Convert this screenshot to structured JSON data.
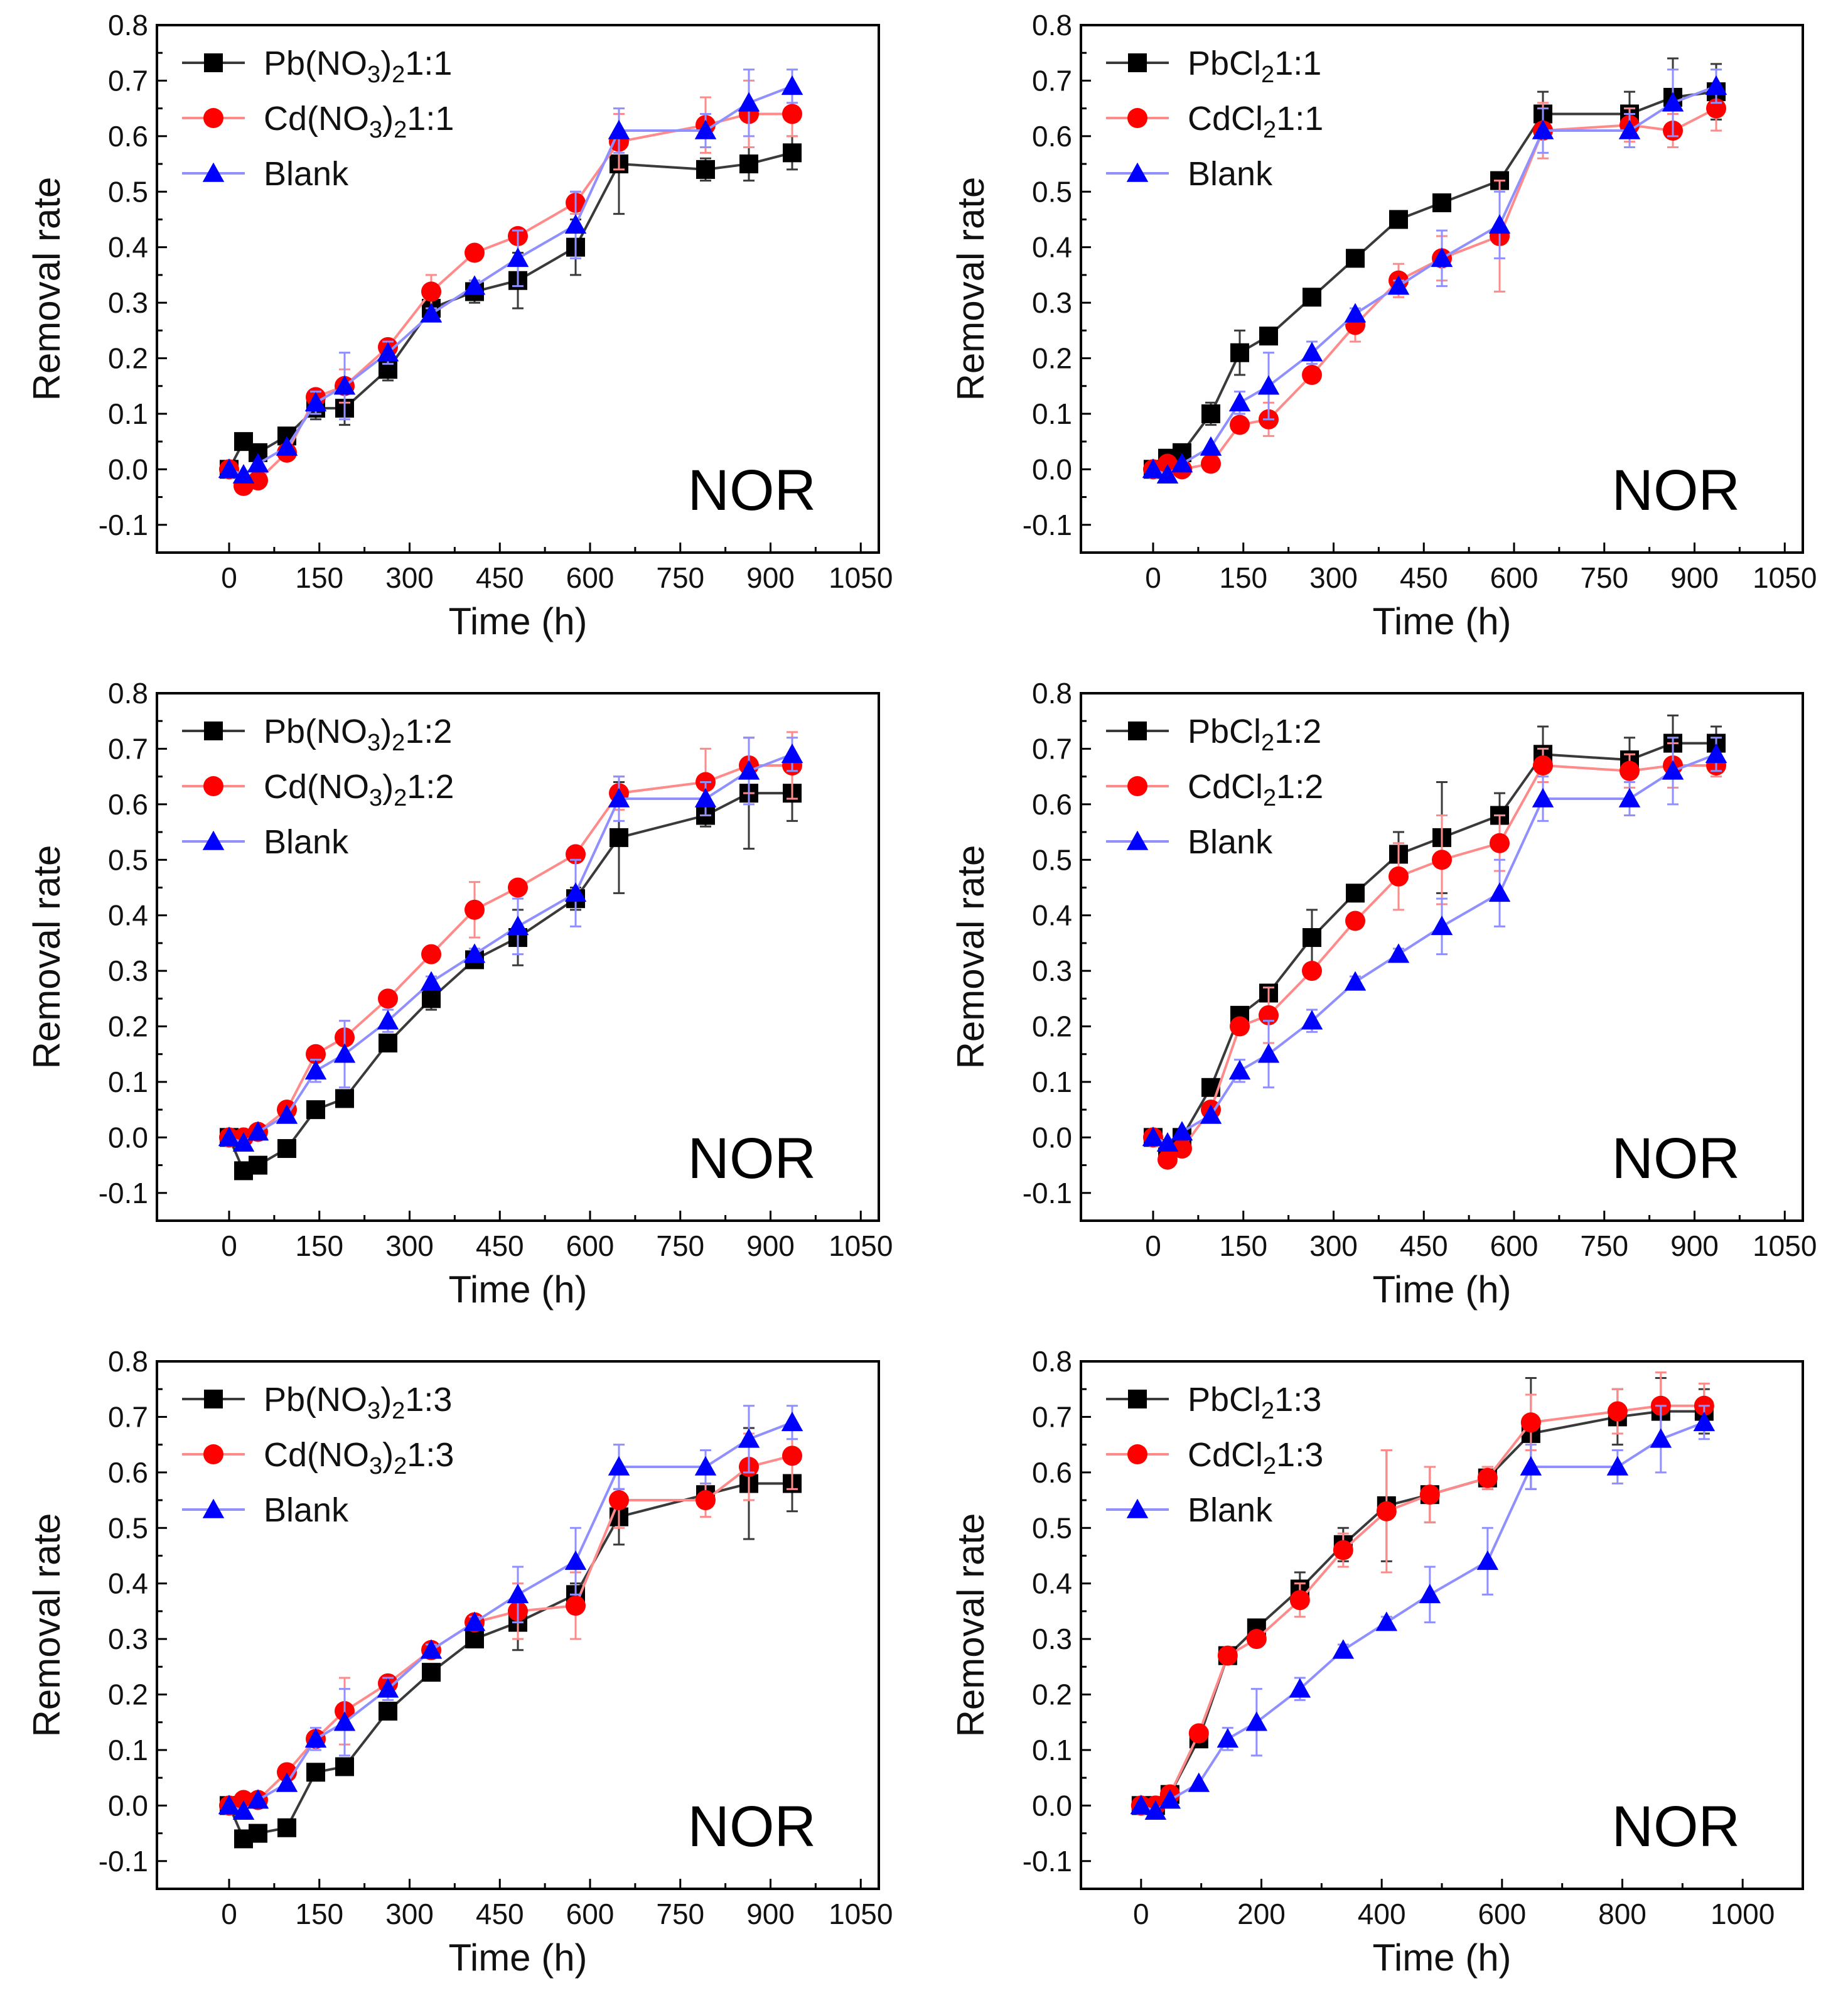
{
  "colors": {
    "black": "#000000",
    "red": "#ff0000",
    "blue": "#0000ff",
    "black_line": "#3a3a3a",
    "red_line": "#ff8a8a",
    "blue_line": "#8f8fff"
  },
  "chart_data": [
    {
      "type": "line",
      "xlabel": "Time (h)",
      "ylabel": "Removal rate",
      "xlim": [
        -120,
        1080
      ],
      "ylim": [
        -0.15,
        0.8
      ],
      "xticks": [
        0,
        150,
        300,
        450,
        600,
        750,
        900,
        1050
      ],
      "yticks": [
        -0.1,
        0.0,
        0.1,
        0.2,
        0.3,
        0.4,
        0.5,
        0.6,
        0.7,
        0.8
      ],
      "ytick_labels": [
        "-0.1",
        "0.0",
        "0.1",
        "0.2",
        "0.3",
        "0.4",
        "0.5",
        "0.6",
        "0.7",
        "0.8"
      ],
      "annotation": "NOR",
      "x": [
        0,
        24,
        48,
        96,
        144,
        192,
        264,
        336,
        408,
        480,
        576,
        648,
        792,
        864,
        936
      ],
      "series": [
        {
          "name": "Pb(NO3)2 1:1",
          "label_main": "Pb(NO",
          "label_sub1": "3",
          "label_mid": ")",
          "label_sub2": "2",
          "label_tail": "1:1",
          "marker": "square",
          "values": [
            0.0,
            0.05,
            0.03,
            0.06,
            0.11,
            0.11,
            0.18,
            0.29,
            0.32,
            0.34,
            0.4,
            0.55,
            0.54,
            0.55,
            0.57
          ],
          "errors": [
            0,
            0,
            0,
            0,
            0.02,
            0.03,
            0.02,
            0.02,
            0.02,
            0.05,
            0.05,
            0.09,
            0.02,
            0.03,
            0.03
          ]
        },
        {
          "name": "Cd(NO3)2 1:1",
          "label_main": "Cd(NO",
          "label_sub1": "3",
          "label_mid": ")",
          "label_sub2": "2",
          "label_tail": "1:1",
          "marker": "circle",
          "values": [
            0.0,
            -0.03,
            -0.02,
            0.03,
            0.13,
            0.15,
            0.22,
            0.32,
            0.39,
            0.42,
            0.48,
            0.59,
            0.62,
            0.64,
            0.64
          ],
          "errors": [
            0,
            0,
            0,
            0,
            0.01,
            0.03,
            0.01,
            0.03,
            0.01,
            0.01,
            0.02,
            0.05,
            0.05,
            0.06,
            0.04
          ]
        },
        {
          "name": "Blank",
          "label_main": "Blank",
          "marker": "triangle",
          "values": [
            0.0,
            -0.01,
            0.01,
            0.04,
            0.12,
            0.15,
            0.21,
            0.28,
            0.33,
            0.38,
            0.44,
            0.61,
            0.61,
            0.66,
            0.69
          ],
          "errors": [
            0,
            0,
            0,
            0,
            0.02,
            0.06,
            0.02,
            0.01,
            0.01,
            0.05,
            0.06,
            0.04,
            0.03,
            0.06,
            0.03
          ]
        }
      ]
    },
    {
      "type": "line",
      "xlabel": "Time (h)",
      "ylabel": "Removal rate",
      "xlim": [
        -120,
        1080
      ],
      "ylim": [
        -0.15,
        0.8
      ],
      "xticks": [
        0,
        150,
        300,
        450,
        600,
        750,
        900,
        1050
      ],
      "yticks": [
        -0.1,
        0.0,
        0.1,
        0.2,
        0.3,
        0.4,
        0.5,
        0.6,
        0.7,
        0.8
      ],
      "ytick_labels": [
        "-0.1",
        "0.0",
        "0.1",
        "0.2",
        "0.3",
        "0.4",
        "0.5",
        "0.6",
        "0.7",
        "0.8"
      ],
      "annotation": "NOR",
      "x": [
        0,
        24,
        48,
        96,
        144,
        192,
        264,
        336,
        408,
        480,
        576,
        648,
        792,
        864,
        936
      ],
      "series": [
        {
          "name": "PbCl2 1:1",
          "label_main": "PbCl",
          "label_sub1": "2",
          "label_tail": "1:1",
          "marker": "square",
          "values": [
            0.0,
            0.02,
            0.03,
            0.1,
            0.21,
            0.24,
            0.31,
            0.38,
            0.45,
            0.48,
            0.52,
            0.64,
            0.64,
            0.67,
            0.68
          ],
          "errors": [
            0,
            0,
            0,
            0.02,
            0.04,
            0.01,
            0.01,
            0.01,
            0.01,
            0.01,
            0.01,
            0.04,
            0.04,
            0.07,
            0.05
          ]
        },
        {
          "name": "CdCl2 1:1",
          "label_main": "CdCl",
          "label_sub1": "2",
          "label_tail": "1:1",
          "marker": "circle",
          "values": [
            0.0,
            0.01,
            0.0,
            0.01,
            0.08,
            0.09,
            0.17,
            0.26,
            0.34,
            0.38,
            0.42,
            0.61,
            0.62,
            0.61,
            0.65
          ],
          "errors": [
            0,
            0,
            0,
            0,
            0.01,
            0.03,
            0.01,
            0.03,
            0.03,
            0.04,
            0.1,
            0.05,
            0.03,
            0.03,
            0.04
          ]
        },
        {
          "name": "Blank",
          "label_main": "Blank",
          "marker": "triangle",
          "values": [
            0.0,
            -0.01,
            0.01,
            0.04,
            0.12,
            0.15,
            0.21,
            0.28,
            0.33,
            0.38,
            0.44,
            0.61,
            0.61,
            0.66,
            0.69
          ],
          "errors": [
            0,
            0,
            0,
            0,
            0.02,
            0.06,
            0.02,
            0.01,
            0.01,
            0.05,
            0.06,
            0.04,
            0.03,
            0.06,
            0.03
          ]
        }
      ]
    },
    {
      "type": "line",
      "xlabel": "Time (h)",
      "ylabel": "Removal rate",
      "xlim": [
        -120,
        1080
      ],
      "ylim": [
        -0.15,
        0.8
      ],
      "xticks": [
        0,
        150,
        300,
        450,
        600,
        750,
        900,
        1050
      ],
      "yticks": [
        -0.1,
        0.0,
        0.1,
        0.2,
        0.3,
        0.4,
        0.5,
        0.6,
        0.7,
        0.8
      ],
      "ytick_labels": [
        "-0.1",
        "0.0",
        "0.1",
        "0.2",
        "0.3",
        "0.4",
        "0.5",
        "0.6",
        "0.7",
        "0.8"
      ],
      "annotation": "NOR",
      "x": [
        0,
        24,
        48,
        96,
        144,
        192,
        264,
        336,
        408,
        480,
        576,
        648,
        792,
        864,
        936
      ],
      "series": [
        {
          "name": "Pb(NO3)2 1:2",
          "label_main": "Pb(NO",
          "label_sub1": "3",
          "label_mid": ")",
          "label_sub2": "2",
          "label_tail": "1:2",
          "marker": "square",
          "values": [
            0.0,
            -0.06,
            -0.05,
            -0.02,
            0.05,
            0.07,
            0.17,
            0.25,
            0.32,
            0.36,
            0.43,
            0.54,
            0.58,
            0.62,
            0.62
          ],
          "errors": [
            0,
            0,
            0,
            0,
            0.01,
            0.01,
            0.01,
            0.02,
            0.01,
            0.05,
            0.02,
            0.1,
            0.02,
            0.1,
            0.05
          ]
        },
        {
          "name": "Cd(NO3)2 1:2",
          "label_main": "Cd(NO",
          "label_sub1": "3",
          "label_mid": ")",
          "label_sub2": "2",
          "label_tail": "1:2",
          "marker": "circle",
          "values": [
            0.0,
            0.0,
            0.01,
            0.05,
            0.15,
            0.18,
            0.25,
            0.33,
            0.41,
            0.45,
            0.51,
            0.62,
            0.64,
            0.67,
            0.67
          ],
          "errors": [
            0,
            0,
            0,
            0,
            0.01,
            0.03,
            0.01,
            0.01,
            0.05,
            0.01,
            0.01,
            0.03,
            0.06,
            0.05,
            0.06
          ]
        },
        {
          "name": "Blank",
          "label_main": "Blank",
          "marker": "triangle",
          "values": [
            0.0,
            -0.01,
            0.01,
            0.04,
            0.12,
            0.15,
            0.21,
            0.28,
            0.33,
            0.38,
            0.44,
            0.61,
            0.61,
            0.66,
            0.69
          ],
          "errors": [
            0,
            0,
            0,
            0,
            0.02,
            0.06,
            0.02,
            0.01,
            0.01,
            0.05,
            0.06,
            0.04,
            0.03,
            0.06,
            0.03
          ]
        }
      ]
    },
    {
      "type": "line",
      "xlabel": "Time (h)",
      "ylabel": "Removal rate",
      "xlim": [
        -120,
        1080
      ],
      "ylim": [
        -0.15,
        0.8
      ],
      "xticks": [
        0,
        150,
        300,
        450,
        600,
        750,
        900,
        1050
      ],
      "yticks": [
        -0.1,
        0.0,
        0.1,
        0.2,
        0.3,
        0.4,
        0.5,
        0.6,
        0.7,
        0.8
      ],
      "ytick_labels": [
        "-0.1",
        "0.0",
        "0.1",
        "0.2",
        "0.3",
        "0.4",
        "0.5",
        "0.6",
        "0.7",
        "0.8"
      ],
      "annotation": "NOR",
      "x": [
        0,
        24,
        48,
        96,
        144,
        192,
        264,
        336,
        408,
        480,
        576,
        648,
        792,
        864,
        936
      ],
      "series": [
        {
          "name": "PbCl2 1:2",
          "label_main": "PbCl",
          "label_sub1": "2",
          "label_tail": "1:2",
          "marker": "square",
          "values": [
            0.0,
            -0.02,
            0.0,
            0.09,
            0.22,
            0.26,
            0.36,
            0.44,
            0.51,
            0.54,
            0.58,
            0.69,
            0.68,
            0.71,
            0.71
          ],
          "errors": [
            0,
            0,
            0,
            0.01,
            0.01,
            0.01,
            0.05,
            0.01,
            0.04,
            0.1,
            0.04,
            0.05,
            0.04,
            0.05,
            0.03
          ]
        },
        {
          "name": "CdCl2 1:2",
          "label_main": "CdCl",
          "label_sub1": "2",
          "label_tail": "1:2",
          "marker": "circle",
          "values": [
            0.0,
            -0.04,
            -0.02,
            0.05,
            0.2,
            0.22,
            0.3,
            0.39,
            0.47,
            0.5,
            0.53,
            0.67,
            0.66,
            0.67,
            0.67
          ],
          "errors": [
            0,
            0,
            0,
            0,
            0.01,
            0.05,
            0.01,
            0.01,
            0.06,
            0.08,
            0.05,
            0.03,
            0.03,
            0.04,
            0.02
          ]
        },
        {
          "name": "Blank",
          "label_main": "Blank",
          "marker": "triangle",
          "values": [
            0.0,
            -0.01,
            0.01,
            0.04,
            0.12,
            0.15,
            0.21,
            0.28,
            0.33,
            0.38,
            0.44,
            0.61,
            0.61,
            0.66,
            0.69
          ],
          "errors": [
            0,
            0,
            0,
            0,
            0.02,
            0.06,
            0.02,
            0.01,
            0.01,
            0.05,
            0.06,
            0.04,
            0.03,
            0.06,
            0.03
          ]
        }
      ]
    },
    {
      "type": "line",
      "xlabel": "Time (h)",
      "ylabel": "Removal rate",
      "xlim": [
        -120,
        1080
      ],
      "ylim": [
        -0.15,
        0.8
      ],
      "xticks": [
        0,
        150,
        300,
        450,
        600,
        750,
        900,
        1050
      ],
      "yticks": [
        -0.1,
        0.0,
        0.1,
        0.2,
        0.3,
        0.4,
        0.5,
        0.6,
        0.7,
        0.8
      ],
      "ytick_labels": [
        "-0.1",
        "0.0",
        "0.1",
        "0.2",
        "0.3",
        "0.4",
        "0.5",
        "0.6",
        "0.7",
        "0.8"
      ],
      "annotation": "NOR",
      "x": [
        0,
        24,
        48,
        96,
        144,
        192,
        264,
        336,
        408,
        480,
        576,
        648,
        792,
        864,
        936
      ],
      "series": [
        {
          "name": "Pb(NO3)2 1:3",
          "label_main": "Pb(NO",
          "label_sub1": "3",
          "label_mid": ")",
          "label_sub2": "2",
          "label_tail": "1:3",
          "marker": "square",
          "values": [
            0.0,
            -0.06,
            -0.05,
            -0.04,
            0.06,
            0.07,
            0.17,
            0.24,
            0.3,
            0.33,
            0.38,
            0.52,
            0.56,
            0.58,
            0.58
          ],
          "errors": [
            0,
            0,
            0,
            0,
            0.01,
            0.01,
            0.01,
            0.01,
            0.01,
            0.05,
            0.02,
            0.05,
            0.01,
            0.1,
            0.05
          ]
        },
        {
          "name": "Cd(NO3)2 1:3",
          "label_main": "Cd(NO",
          "label_sub1": "3",
          "label_mid": ")",
          "label_sub2": "2",
          "label_tail": "1:3",
          "marker": "circle",
          "values": [
            0.0,
            0.01,
            0.01,
            0.06,
            0.12,
            0.17,
            0.22,
            0.28,
            0.33,
            0.35,
            0.36,
            0.55,
            0.55,
            0.61,
            0.63
          ],
          "errors": [
            0,
            0,
            0,
            0,
            0.01,
            0.06,
            0.01,
            0.01,
            0.01,
            0.05,
            0.06,
            0.05,
            0.03,
            0.06,
            0.06
          ]
        },
        {
          "name": "Blank",
          "label_main": "Blank",
          "marker": "triangle",
          "values": [
            0.0,
            -0.01,
            0.01,
            0.04,
            0.12,
            0.15,
            0.21,
            0.28,
            0.33,
            0.38,
            0.44,
            0.61,
            0.61,
            0.66,
            0.69
          ],
          "errors": [
            0,
            0,
            0,
            0,
            0.02,
            0.06,
            0.02,
            0.01,
            0.01,
            0.05,
            0.06,
            0.04,
            0.03,
            0.06,
            0.03
          ]
        }
      ]
    },
    {
      "type": "line",
      "xlabel": "Time (h)",
      "ylabel": "Removal rate",
      "xlim": [
        -100,
        1100
      ],
      "ylim": [
        -0.15,
        0.8
      ],
      "xticks": [
        0,
        200,
        400,
        600,
        800,
        1000
      ],
      "yticks": [
        -0.1,
        0.0,
        0.1,
        0.2,
        0.3,
        0.4,
        0.5,
        0.6,
        0.7,
        0.8
      ],
      "ytick_labels": [
        "-0.1",
        "0.0",
        "0.1",
        "0.2",
        "0.3",
        "0.4",
        "0.5",
        "0.6",
        "0.7",
        "0.8"
      ],
      "annotation": "NOR",
      "x": [
        0,
        24,
        48,
        96,
        144,
        192,
        264,
        336,
        408,
        480,
        576,
        648,
        792,
        864,
        936
      ],
      "series": [
        {
          "name": "PbCl2 1:3",
          "label_main": "PbCl",
          "label_sub1": "2",
          "label_tail": "1:3",
          "marker": "square",
          "values": [
            0.0,
            0.0,
            0.02,
            0.12,
            0.27,
            0.32,
            0.39,
            0.47,
            0.54,
            0.56,
            0.59,
            0.67,
            0.7,
            0.71,
            0.71
          ],
          "errors": [
            0,
            0,
            0,
            0.01,
            0.01,
            0.01,
            0.03,
            0.03,
            0.1,
            0.05,
            0.02,
            0.1,
            0.05,
            0.06,
            0.04
          ]
        },
        {
          "name": "CdCl2 1:3",
          "label_main": "CdCl",
          "label_sub1": "2",
          "label_tail": "1:3",
          "marker": "circle",
          "values": [
            0.0,
            0.0,
            0.02,
            0.13,
            0.27,
            0.3,
            0.37,
            0.46,
            0.53,
            0.56,
            0.59,
            0.69,
            0.71,
            0.72,
            0.72
          ],
          "errors": [
            0,
            0,
            0,
            0.01,
            0.01,
            0.01,
            0.03,
            0.03,
            0.11,
            0.05,
            0.02,
            0.05,
            0.04,
            0.06,
            0.04
          ]
        },
        {
          "name": "Blank",
          "label_main": "Blank",
          "marker": "triangle",
          "values": [
            0.0,
            -0.01,
            0.01,
            0.04,
            0.12,
            0.15,
            0.21,
            0.28,
            0.33,
            0.38,
            0.44,
            0.61,
            0.61,
            0.66,
            0.69
          ],
          "errors": [
            0,
            0,
            0,
            0,
            0.02,
            0.06,
            0.02,
            0.01,
            0.01,
            0.05,
            0.06,
            0.04,
            0.03,
            0.06,
            0.03
          ]
        }
      ]
    }
  ]
}
